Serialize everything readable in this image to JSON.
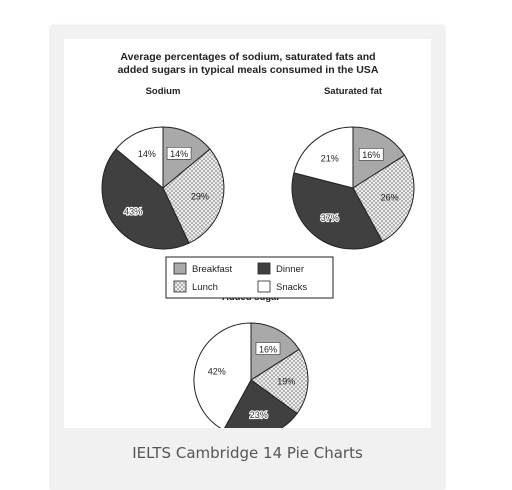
{
  "caption": "IELTS Cambridge 14 Pie Charts",
  "colors": {
    "breakfast": "#a9a9a9",
    "lunch": "#eeeeee",
    "dinner": "#404040",
    "snacks": "#ffffff",
    "outline": "#222222"
  },
  "chart_data": {
    "type": "pie",
    "title": [
      "Average percentages of sodium, saturated fats and",
      "added sugars in typical meals consumed in the USA"
    ],
    "categories": [
      "Breakfast",
      "Lunch",
      "Dinner",
      "Snacks"
    ],
    "legend": {
      "placement": "center",
      "entries": [
        {
          "name": "Breakfast",
          "pattern": "breakfast"
        },
        {
          "name": "Dinner",
          "pattern": "dinner"
        },
        {
          "name": "Lunch",
          "pattern": "lunch"
        },
        {
          "name": "Snacks",
          "pattern": "snacks"
        }
      ]
    },
    "pies": [
      {
        "id": "sodium",
        "title": "Sodium",
        "values": [
          14,
          29,
          43,
          14
        ],
        "labels": [
          "14%",
          "29%",
          "43%",
          "14%"
        ]
      },
      {
        "id": "saturated-fat",
        "title": "Saturated fat",
        "values": [
          16,
          26,
          37,
          21
        ],
        "labels": [
          "16%",
          "26%",
          "37%",
          "21%"
        ]
      },
      {
        "id": "added-sugar",
        "title": "Added sugar",
        "values": [
          16,
          19,
          23,
          42
        ],
        "labels": [
          "16%",
          "19%",
          "23%",
          "42%"
        ]
      }
    ]
  }
}
